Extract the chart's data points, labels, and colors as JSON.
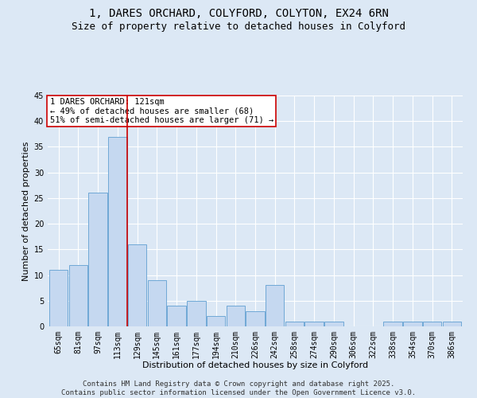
{
  "title_line1": "1, DARES ORCHARD, COLYFORD, COLYTON, EX24 6RN",
  "title_line2": "Size of property relative to detached houses in Colyford",
  "xlabel": "Distribution of detached houses by size in Colyford",
  "ylabel": "Number of detached properties",
  "categories": [
    "65sqm",
    "81sqm",
    "97sqm",
    "113sqm",
    "129sqm",
    "145sqm",
    "161sqm",
    "177sqm",
    "194sqm",
    "210sqm",
    "226sqm",
    "242sqm",
    "258sqm",
    "274sqm",
    "290sqm",
    "306sqm",
    "322sqm",
    "338sqm",
    "354sqm",
    "370sqm",
    "386sqm"
  ],
  "values": [
    11,
    12,
    26,
    37,
    16,
    9,
    4,
    5,
    2,
    4,
    3,
    8,
    1,
    1,
    1,
    0,
    0,
    1,
    1,
    1,
    1
  ],
  "bar_color": "#c5d8f0",
  "bar_edge_color": "#6fa8d6",
  "highlight_index": 3,
  "highlight_line_color": "#cc0000",
  "ylim": [
    0,
    45
  ],
  "yticks": [
    0,
    5,
    10,
    15,
    20,
    25,
    30,
    35,
    40,
    45
  ],
  "annotation_text": "1 DARES ORCHARD: 121sqm\n← 49% of detached houses are smaller (68)\n51% of semi-detached houses are larger (71) →",
  "annotation_box_color": "#ffffff",
  "annotation_box_edge": "#cc0000",
  "footer_line1": "Contains HM Land Registry data © Crown copyright and database right 2025.",
  "footer_line2": "Contains public sector information licensed under the Open Government Licence v3.0.",
  "background_color": "#dce8f5",
  "grid_color": "#ffffff",
  "title_fontsize": 10,
  "subtitle_fontsize": 9,
  "axis_label_fontsize": 8,
  "tick_fontsize": 7,
  "annotation_fontsize": 7.5,
  "footer_fontsize": 6.5
}
